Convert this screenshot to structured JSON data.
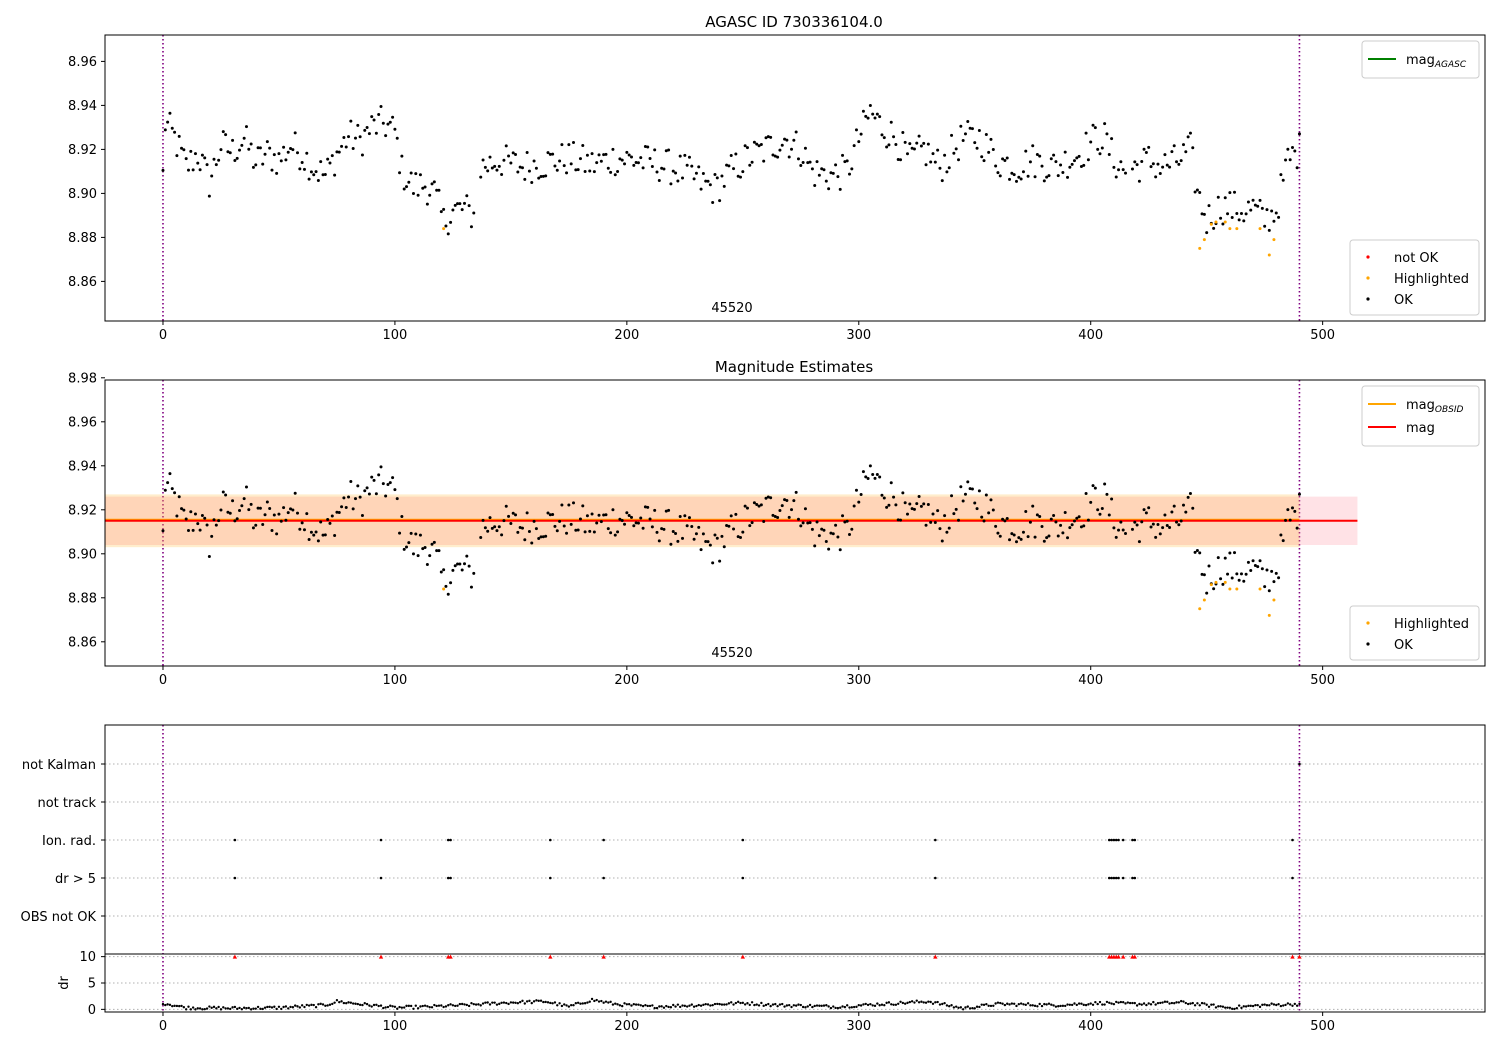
{
  "colors": {
    "ok": "#000000",
    "highlighted": "#ffa500",
    "not_ok": "#ff0000",
    "mag_agasc": "#008000",
    "mag_obsid": "#ffa500",
    "mag": "#ff0000",
    "vline": "#800080",
    "grid": "#b0b0b0"
  },
  "chart_data": [
    {
      "type": "scatter",
      "title": "AGASC ID 730336104.0",
      "annotation": "45520",
      "xlim": [
        -25,
        570
      ],
      "ylim": [
        8.842,
        8.972
      ],
      "xticks": [
        0,
        100,
        200,
        300,
        400,
        500
      ],
      "yticks": [
        8.86,
        8.88,
        8.9,
        8.92,
        8.94,
        8.96
      ],
      "x_tick_labels": [
        "0",
        "100",
        "200",
        "300",
        "400",
        "500"
      ],
      "y_tick_labels": [
        "8.86",
        "8.88",
        "8.90",
        "8.92",
        "8.94",
        "8.96"
      ],
      "vlines": [
        0,
        490
      ],
      "legend_lines": [
        {
          "name": "mag",
          "sub": "AGASC",
          "color": "#008000"
        }
      ],
      "legend_points": [
        {
          "name": "not OK",
          "color": "#ff0000"
        },
        {
          "name": "Highlighted",
          "color": "#ffa500"
        },
        {
          "name": "OK",
          "color": "#000000"
        }
      ],
      "ok_anchors": [
        [
          0,
          8.908
        ],
        [
          1,
          8.932
        ],
        [
          5,
          8.925
        ],
        [
          10,
          8.912
        ],
        [
          15,
          8.918
        ],
        [
          20,
          8.905
        ],
        [
          25,
          8.922
        ],
        [
          30,
          8.919
        ],
        [
          35,
          8.925
        ],
        [
          40,
          8.914
        ],
        [
          45,
          8.918
        ],
        [
          50,
          8.915
        ],
        [
          55,
          8.922
        ],
        [
          60,
          8.918
        ],
        [
          65,
          8.912
        ],
        [
          70,
          8.908
        ],
        [
          75,
          8.918
        ],
        [
          80,
          8.926
        ],
        [
          85,
          8.924
        ],
        [
          90,
          8.93
        ],
        [
          95,
          8.932
        ],
        [
          100,
          8.928
        ],
        [
          103,
          8.91
        ],
        [
          108,
          8.903
        ],
        [
          113,
          8.904
        ],
        [
          117,
          8.9
        ],
        [
          121,
          8.887
        ],
        [
          125,
          8.892
        ],
        [
          130,
          8.893
        ],
        [
          134,
          8.89
        ],
        [
          137,
          8.912
        ],
        [
          145,
          8.915
        ],
        [
          155,
          8.912
        ],
        [
          165,
          8.914
        ],
        [
          175,
          8.916
        ],
        [
          185,
          8.913
        ],
        [
          195,
          8.916
        ],
        [
          205,
          8.915
        ],
        [
          215,
          8.913
        ],
        [
          225,
          8.91
        ],
        [
          232,
          8.905
        ],
        [
          238,
          8.902
        ],
        [
          245,
          8.91
        ],
        [
          252,
          8.916
        ],
        [
          260,
          8.92
        ],
        [
          268,
          8.925
        ],
        [
          275,
          8.92
        ],
        [
          280,
          8.91
        ],
        [
          288,
          8.908
        ],
        [
          295,
          8.91
        ],
        [
          300,
          8.925
        ],
        [
          305,
          8.937
        ],
        [
          310,
          8.93
        ],
        [
          316,
          8.925
        ],
        [
          322,
          8.915
        ],
        [
          328,
          8.92
        ],
        [
          335,
          8.912
        ],
        [
          345,
          8.925
        ],
        [
          352,
          8.925
        ],
        [
          360,
          8.915
        ],
        [
          368,
          8.912
        ],
        [
          375,
          8.915
        ],
        [
          385,
          8.912
        ],
        [
          395,
          8.918
        ],
        [
          402,
          8.925
        ],
        [
          406,
          8.925
        ],
        [
          410,
          8.915
        ],
        [
          415,
          8.91
        ],
        [
          425,
          8.915
        ],
        [
          430,
          8.912
        ],
        [
          438,
          8.915
        ],
        [
          443,
          8.92
        ],
        [
          446,
          8.9
        ],
        [
          450,
          8.888
        ],
        [
          456,
          8.894
        ],
        [
          460,
          8.894
        ],
        [
          465,
          8.892
        ],
        [
          470,
          8.893
        ],
        [
          475,
          8.888
        ],
        [
          480,
          8.892
        ],
        [
          485,
          8.915
        ],
        [
          490,
          8.92
        ]
      ],
      "highlighted_points": [
        [
          121,
          8.884
        ],
        [
          447,
          8.875
        ],
        [
          449,
          8.879
        ],
        [
          452,
          8.886
        ],
        [
          454,
          8.887
        ],
        [
          458,
          8.887
        ],
        [
          460,
          8.884
        ],
        [
          463,
          8.884
        ],
        [
          473,
          8.884
        ],
        [
          477,
          8.872
        ],
        [
          479,
          8.879
        ]
      ],
      "not_ok_points": []
    },
    {
      "type": "scatter",
      "title": "Magnitude Estimates",
      "annotation": "45520",
      "xlim": [
        -25,
        570
      ],
      "ylim": [
        8.849,
        8.979
      ],
      "xticks": [
        0,
        100,
        200,
        300,
        400,
        500
      ],
      "yticks": [
        8.86,
        8.88,
        8.9,
        8.92,
        8.94,
        8.96,
        8.98
      ],
      "x_tick_labels": [
        "0",
        "100",
        "200",
        "300",
        "400",
        "500"
      ],
      "y_tick_labels": [
        "8.86",
        "8.88",
        "8.90",
        "8.92",
        "8.94",
        "8.96",
        "8.98"
      ],
      "vlines": [
        0,
        490
      ],
      "mag_obsid": {
        "value": 8.915,
        "band": [
          8.903,
          8.927
        ],
        "x_range": [
          -25,
          490
        ]
      },
      "mag": {
        "value": 8.915,
        "band": [
          8.904,
          8.926
        ],
        "x_range": [
          -25,
          515
        ]
      },
      "legend_lines": [
        {
          "name": "mag",
          "sub": "OBSID",
          "color": "#ffa500"
        },
        {
          "name": "mag",
          "sub": "",
          "color": "#ff0000"
        }
      ],
      "legend_points": [
        {
          "name": "Highlighted",
          "color": "#ffa500"
        },
        {
          "name": "OK",
          "color": "#000000"
        }
      ]
    },
    {
      "type": "scatter",
      "title": "",
      "xlim": [
        -25,
        570
      ],
      "xticks": [
        0,
        100,
        200,
        300,
        400,
        500
      ],
      "x_tick_labels": [
        "0",
        "100",
        "200",
        "300",
        "400",
        "500"
      ],
      "vlines": [
        0,
        490
      ],
      "flag_rows": [
        "not Kalman",
        "not track",
        "Ion. rad.",
        "dr > 5",
        "OBS not OK"
      ],
      "flag_events": {
        "not Kalman": [
          490
        ],
        "not track": [],
        "Ion. rad.": [
          31,
          94,
          123,
          124,
          167,
          190,
          250,
          333,
          408,
          409,
          410,
          411,
          412,
          414,
          418,
          419,
          487
        ],
        "dr > 5": [
          31,
          94,
          123,
          124,
          167,
          190,
          250,
          333,
          408,
          409,
          410,
          411,
          412,
          414,
          418,
          419,
          487
        ],
        "OBS not OK": []
      },
      "dr": {
        "ylabel": "dr",
        "ylim": [
          -0.5,
          10.5
        ],
        "yticks": [
          0,
          5,
          10
        ],
        "y_tick_labels": [
          "0",
          "5",
          "10"
        ],
        "clipped_markers_at": 10,
        "clipped_x": [
          31,
          94,
          123,
          124,
          167,
          190,
          250,
          333,
          408,
          409,
          410,
          411,
          412,
          414,
          418,
          419,
          487,
          490
        ],
        "anchors": [
          [
            0,
            1.2
          ],
          [
            10,
            0.3
          ],
          [
            30,
            0.2
          ],
          [
            50,
            0.3
          ],
          [
            70,
            0.8
          ],
          [
            75,
            1.5
          ],
          [
            85,
            1.0
          ],
          [
            100,
            0.3
          ],
          [
            115,
            0.5
          ],
          [
            130,
            0.8
          ],
          [
            150,
            1.3
          ],
          [
            165,
            1.5
          ],
          [
            175,
            0.5
          ],
          [
            185,
            1.8
          ],
          [
            195,
            1.0
          ],
          [
            210,
            0.5
          ],
          [
            230,
            0.8
          ],
          [
            250,
            1.2
          ],
          [
            265,
            0.8
          ],
          [
            290,
            0.5
          ],
          [
            310,
            1.0
          ],
          [
            330,
            1.5
          ],
          [
            345,
            0.2
          ],
          [
            360,
            1.0
          ],
          [
            385,
            0.8
          ],
          [
            405,
            1.2
          ],
          [
            420,
            1.0
          ],
          [
            440,
            1.3
          ],
          [
            460,
            0.3
          ],
          [
            475,
            0.8
          ],
          [
            490,
            1.0
          ]
        ]
      }
    }
  ]
}
